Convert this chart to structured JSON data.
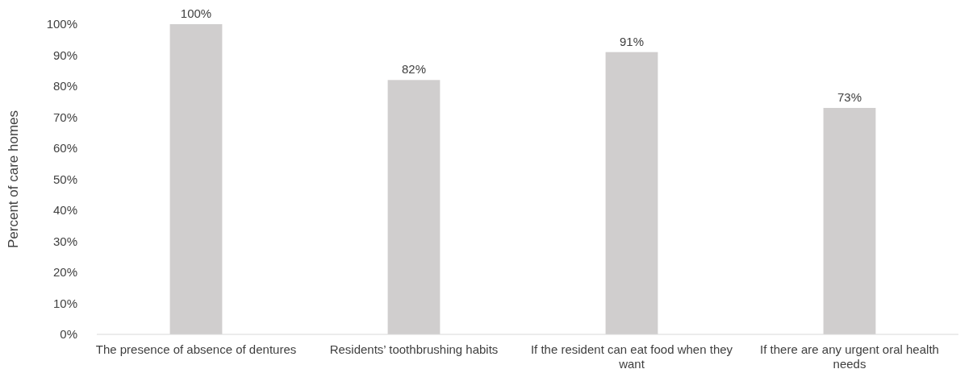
{
  "chart_data": {
    "type": "bar",
    "ylabel": "Percent of care homes",
    "categories": [
      "The presence of absence of dentures",
      "Residents’ toothbrushing habits",
      "If the resident can eat food when they want",
      "If there are any urgent oral health needs"
    ],
    "values": [
      100,
      82,
      91,
      73
    ],
    "value_labels": [
      "100%",
      "82%",
      "91%",
      "73%"
    ],
    "color": "#d0cece",
    "ylim": [
      0,
      100
    ],
    "yticks": [
      {
        "value": 0,
        "label": "0%"
      },
      {
        "value": 10,
        "label": "10%"
      },
      {
        "value": 20,
        "label": "20%"
      },
      {
        "value": 30,
        "label": "30%"
      },
      {
        "value": 40,
        "label": "40%"
      },
      {
        "value": 50,
        "label": "50%"
      },
      {
        "value": 60,
        "label": "60%"
      },
      {
        "value": 70,
        "label": "70%"
      },
      {
        "value": 80,
        "label": "80%"
      },
      {
        "value": 90,
        "label": "90%"
      },
      {
        "value": 100,
        "label": "100%"
      }
    ],
    "grid": false
  }
}
